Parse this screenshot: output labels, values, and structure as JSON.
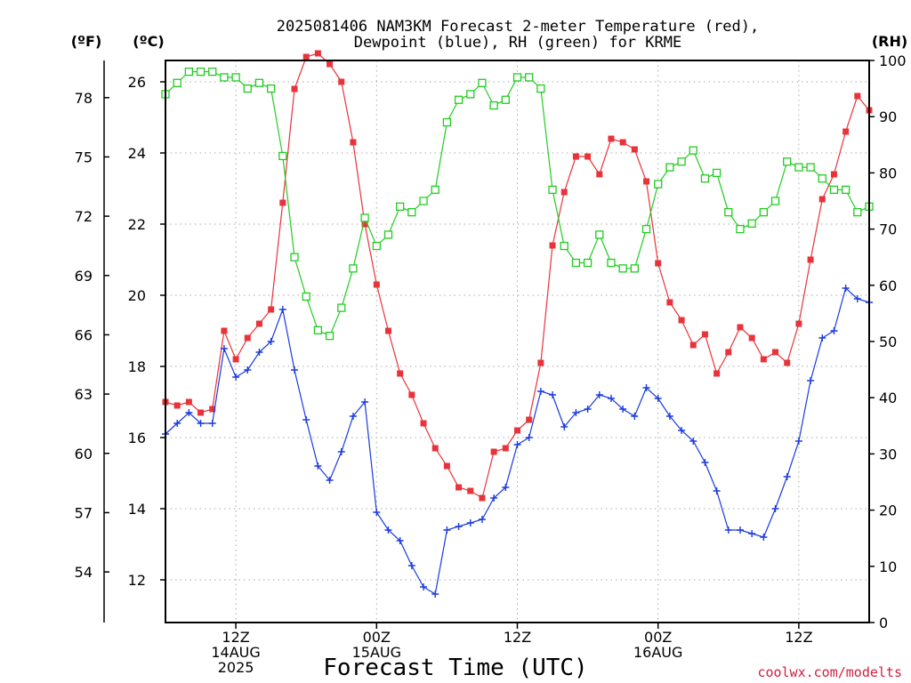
{
  "title": [
    "2025081406 NAM3KM Forecast 2-meter Temperature (red),",
    "Dewpoint (blue), RH (green) for KRME"
  ],
  "units": {
    "fahrenheit": "(ºF)",
    "celsius": "(ºC)",
    "rh": "(RH)"
  },
  "xlabel": "Forecast Time (UTC)",
  "credit": "coolwx.com/modelts",
  "x_ticks": [
    {
      "h": 6,
      "lines": [
        "12Z",
        "14AUG",
        "2025"
      ]
    },
    {
      "h": 18,
      "lines": [
        "00Z",
        "15AUG"
      ]
    },
    {
      "h": 30,
      "lines": [
        "12Z"
      ]
    },
    {
      "h": 42,
      "lines": [
        "00Z",
        "16AUG"
      ]
    },
    {
      "h": 54,
      "lines": [
        "12Z"
      ]
    }
  ],
  "yc_ticks": [
    "12",
    "14",
    "16",
    "18",
    "20",
    "22",
    "24",
    "26"
  ],
  "yf_ticks": [
    "54",
    "57",
    "60",
    "63",
    "66",
    "69",
    "72",
    "75",
    "78"
  ],
  "yrh_ticks": [
    "0",
    "10",
    "20",
    "30",
    "40",
    "50",
    "60",
    "70",
    "80",
    "90",
    "100"
  ],
  "chart_data": {
    "type": "line",
    "x_units": "forecast hour from 2025-08-14 06Z",
    "x": [
      0,
      1,
      2,
      3,
      4,
      5,
      6,
      7,
      8,
      9,
      10,
      11,
      12,
      13,
      14,
      15,
      16,
      17,
      18,
      19,
      20,
      21,
      22,
      23,
      24,
      25,
      26,
      27,
      28,
      29,
      30,
      31,
      32,
      33,
      34,
      35,
      36,
      37,
      38,
      39,
      40,
      41,
      42,
      43,
      44,
      45,
      46,
      47,
      48,
      49,
      50,
      51,
      52,
      53,
      54,
      55,
      56,
      57,
      58,
      59,
      60
    ],
    "xlim": [
      0,
      60
    ],
    "ylim_celsius": [
      10.8,
      26.6
    ],
    "ylim_rh": [
      0,
      100
    ],
    "fahrenheit_ticks_at": [
      54,
      57,
      60,
      63,
      66,
      69,
      72,
      75,
      78
    ],
    "series": [
      {
        "name": "2-meter Temperature",
        "axis": "celsius",
        "color": "#e8333a",
        "marker": "filled-square",
        "values": [
          17.0,
          16.9,
          17.0,
          16.7,
          16.8,
          19.0,
          18.2,
          18.8,
          19.2,
          19.6,
          22.6,
          25.8,
          26.7,
          26.8,
          26.5,
          26.0,
          24.3,
          22.0,
          20.3,
          19.0,
          17.8,
          17.2,
          16.4,
          15.7,
          15.2,
          14.6,
          14.5,
          14.3,
          15.6,
          15.7,
          16.2,
          16.5,
          18.1,
          21.4,
          22.9,
          23.9,
          23.9,
          23.4,
          24.4,
          24.3,
          24.1,
          23.2,
          20.9,
          19.8,
          19.3,
          18.6,
          18.9,
          17.8,
          18.4,
          19.1,
          18.8,
          18.2,
          18.4,
          18.1,
          19.2,
          21.0,
          22.7,
          23.4,
          24.6,
          25.6,
          25.2
        ]
      },
      {
        "name": "Dewpoint",
        "axis": "celsius",
        "color": "#1a3ae0",
        "marker": "plus",
        "values": [
          16.1,
          16.4,
          16.7,
          16.4,
          16.4,
          18.5,
          17.7,
          17.9,
          18.4,
          18.7,
          19.6,
          17.9,
          16.5,
          15.2,
          14.8,
          15.6,
          16.6,
          17.0,
          13.9,
          13.4,
          13.1,
          12.4,
          11.8,
          11.6,
          13.4,
          13.5,
          13.6,
          13.7,
          14.3,
          14.6,
          15.8,
          16.0,
          17.3,
          17.2,
          16.3,
          16.7,
          16.8,
          17.2,
          17.1,
          16.8,
          16.6,
          17.4,
          17.1,
          16.6,
          16.2,
          15.9,
          15.3,
          14.5,
          13.4,
          13.4,
          13.3,
          13.2,
          14.0,
          14.9,
          15.9,
          17.6,
          18.8,
          19.0,
          20.2,
          19.9,
          19.8
        ]
      },
      {
        "name": "RH",
        "axis": "rh",
        "color": "#22cc22",
        "marker": "open-square",
        "values": [
          94,
          96,
          98,
          98,
          98,
          97,
          97,
          95,
          96,
          95,
          83,
          65,
          58,
          52,
          51,
          56,
          63,
          72,
          67,
          69,
          74,
          73,
          75,
          77,
          89,
          93,
          94,
          96,
          92,
          93,
          97,
          97,
          95,
          77,
          67,
          64,
          64,
          69,
          64,
          63,
          63,
          70,
          78,
          81,
          82,
          84,
          79,
          80,
          73,
          70,
          71,
          73,
          75,
          82,
          81,
          81,
          79,
          77,
          77,
          73,
          74
        ]
      }
    ]
  }
}
